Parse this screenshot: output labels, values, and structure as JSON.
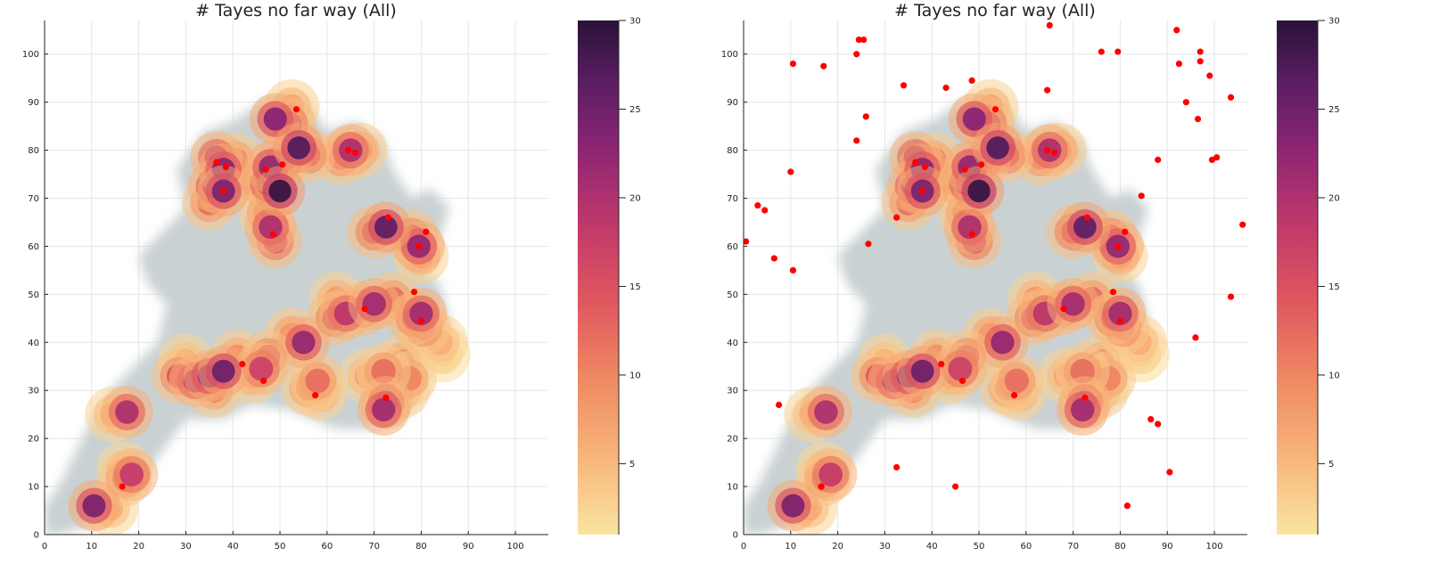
{
  "chart_data": [
    {
      "type": "scatter",
      "title": "# Tayes no far way (All)",
      "xlabel": "",
      "ylabel": "",
      "xlim": [
        0,
        107
      ],
      "ylim": [
        0,
        107
      ],
      "x_ticks": [
        "0",
        "10",
        "20",
        "30",
        "40",
        "50",
        "60",
        "70",
        "80",
        "90",
        "100"
      ],
      "y_ticks": [
        "0",
        "10",
        "20",
        "30",
        "40",
        "50",
        "60",
        "70",
        "80",
        "90",
        "100"
      ],
      "grid": true,
      "colorbar": {
        "min": 1,
        "max": 30,
        "ticks": [
          "5",
          "10",
          "15",
          "20",
          "25",
          "30"
        ]
      },
      "background_color": "#c6cfd0",
      "series": [
        {
          "marker": "heat-bubble",
          "points": [
            {
              "x": 10.5,
              "y": 6,
              "v": 24
            },
            {
              "x": 14,
              "y": 5.5,
              "v": 6
            },
            {
              "x": 17,
              "y": 11.5,
              "v": 12
            },
            {
              "x": 18.5,
              "y": 12.5,
              "v": 18
            },
            {
              "x": 17,
              "y": 13.5,
              "v": 5
            },
            {
              "x": 17.5,
              "y": 25.5,
              "v": 20
            },
            {
              "x": 14.5,
              "y": 25,
              "v": 6
            },
            {
              "x": 28.5,
              "y": 33,
              "v": 14
            },
            {
              "x": 32,
              "y": 32,
              "v": 19
            },
            {
              "x": 35,
              "y": 33,
              "v": 23
            },
            {
              "x": 38,
              "y": 34,
              "v": 25
            },
            {
              "x": 30,
              "y": 36,
              "v": 6
            },
            {
              "x": 41,
              "y": 37,
              "v": 9
            },
            {
              "x": 36,
              "y": 30,
              "v": 10
            },
            {
              "x": 46,
              "y": 34.5,
              "v": 17
            },
            {
              "x": 47.5,
              "y": 37,
              "v": 14
            },
            {
              "x": 44,
              "y": 33,
              "v": 8
            },
            {
              "x": 55,
              "y": 40,
              "v": 22
            },
            {
              "x": 52.5,
              "y": 41.5,
              "v": 10
            },
            {
              "x": 58,
              "y": 32,
              "v": 12
            },
            {
              "x": 56,
              "y": 30.5,
              "v": 10
            },
            {
              "x": 58.5,
              "y": 29.5,
              "v": 8
            },
            {
              "x": 61.5,
              "y": 45,
              "v": 15
            },
            {
              "x": 64,
              "y": 46,
              "v": 19
            },
            {
              "x": 67.5,
              "y": 47,
              "v": 15
            },
            {
              "x": 70,
              "y": 48,
              "v": 21
            },
            {
              "x": 74,
              "y": 49,
              "v": 12
            },
            {
              "x": 62,
              "y": 49,
              "v": 8
            },
            {
              "x": 72,
              "y": 34,
              "v": 12
            },
            {
              "x": 72.5,
              "y": 27.5,
              "v": 19
            },
            {
              "x": 72,
              "y": 26,
              "v": 21
            },
            {
              "x": 76,
              "y": 36,
              "v": 9
            },
            {
              "x": 77.5,
              "y": 32.5,
              "v": 10
            },
            {
              "x": 76,
              "y": 30,
              "v": 8
            },
            {
              "x": 68.5,
              "y": 33,
              "v": 7
            },
            {
              "x": 78.5,
              "y": 45,
              "v": 16
            },
            {
              "x": 80,
              "y": 46,
              "v": 21
            },
            {
              "x": 80.5,
              "y": 43,
              "v": 13
            },
            {
              "x": 84.5,
              "y": 37.5,
              "v": 4
            },
            {
              "x": 84,
              "y": 40,
              "v": 6
            },
            {
              "x": 72.5,
              "y": 64,
              "v": 26
            },
            {
              "x": 70,
              "y": 63,
              "v": 15
            },
            {
              "x": 79.5,
              "y": 60,
              "v": 22
            },
            {
              "x": 78,
              "y": 62,
              "v": 14
            },
            {
              "x": 80,
              "y": 58,
              "v": 8
            },
            {
              "x": 48,
              "y": 64,
              "v": 20
            },
            {
              "x": 49,
              "y": 61,
              "v": 16
            },
            {
              "x": 47,
              "y": 67,
              "v": 10
            },
            {
              "x": 50,
              "y": 71.5,
              "v": 29
            },
            {
              "x": 47.5,
              "y": 73,
              "v": 20
            },
            {
              "x": 48,
              "y": 76.5,
              "v": 22
            },
            {
              "x": 51,
              "y": 78,
              "v": 15
            },
            {
              "x": 44.5,
              "y": 73,
              "v": 8
            },
            {
              "x": 38,
              "y": 71.5,
              "v": 24
            },
            {
              "x": 36,
              "y": 72.5,
              "v": 20
            },
            {
              "x": 38,
              "y": 76,
              "v": 23
            },
            {
              "x": 36.5,
              "y": 78.5,
              "v": 19
            },
            {
              "x": 35,
              "y": 69,
              "v": 12
            },
            {
              "x": 40.5,
              "y": 78,
              "v": 10
            },
            {
              "x": 49,
              "y": 86.5,
              "v": 23
            },
            {
              "x": 52,
              "y": 85.5,
              "v": 16
            },
            {
              "x": 52.5,
              "y": 89,
              "v": 7
            },
            {
              "x": 54,
              "y": 80.5,
              "v": 27
            },
            {
              "x": 56,
              "y": 79,
              "v": 14
            },
            {
              "x": 65,
              "y": 80,
              "v": 20
            },
            {
              "x": 63,
              "y": 78.5,
              "v": 12
            },
            {
              "x": 67,
              "y": 80,
              "v": 9
            }
          ]
        },
        {
          "marker": "red-dot",
          "points": [
            {
              "x": 16.5,
              "y": 10
            },
            {
              "x": 42,
              "y": 35.5
            },
            {
              "x": 46.5,
              "y": 32
            },
            {
              "x": 57.5,
              "y": 29
            },
            {
              "x": 72.5,
              "y": 28.5
            },
            {
              "x": 68,
              "y": 47
            },
            {
              "x": 78.5,
              "y": 50.5
            },
            {
              "x": 80,
              "y": 44.5
            },
            {
              "x": 73,
              "y": 66
            },
            {
              "x": 79.5,
              "y": 60
            },
            {
              "x": 81,
              "y": 63
            },
            {
              "x": 48.5,
              "y": 62.5
            },
            {
              "x": 47,
              "y": 76
            },
            {
              "x": 50.5,
              "y": 77
            },
            {
              "x": 38,
              "y": 71.5
            },
            {
              "x": 38.5,
              "y": 76.5
            },
            {
              "x": 36.5,
              "y": 77.5
            },
            {
              "x": 53.5,
              "y": 88.5
            },
            {
              "x": 64.5,
              "y": 80
            },
            {
              "x": 66,
              "y": 79.5
            }
          ]
        }
      ]
    },
    {
      "type": "scatter",
      "title": "# Tayes no far way (All)",
      "xlabel": "",
      "ylabel": "",
      "xlim": [
        0,
        107
      ],
      "ylim": [
        0,
        107
      ],
      "x_ticks": [
        "0",
        "10",
        "20",
        "30",
        "40",
        "50",
        "60",
        "70",
        "80",
        "90",
        "100"
      ],
      "y_ticks": [
        "0",
        "10",
        "20",
        "30",
        "40",
        "50",
        "60",
        "70",
        "80",
        "90",
        "100"
      ],
      "grid": true,
      "colorbar": {
        "min": 1,
        "max": 30,
        "ticks": [
          "5",
          "10",
          "15",
          "20",
          "25",
          "30"
        ]
      },
      "background_color": "#c6cfd0",
      "series": [
        {
          "marker": "heat-bubble",
          "same_as_chart": 0
        },
        {
          "marker": "red-dot",
          "points": [
            {
              "x": 16.5,
              "y": 10
            },
            {
              "x": 42,
              "y": 35.5
            },
            {
              "x": 46.5,
              "y": 32
            },
            {
              "x": 57.5,
              "y": 29
            },
            {
              "x": 72.5,
              "y": 28.5
            },
            {
              "x": 68,
              "y": 47
            },
            {
              "x": 78.5,
              "y": 50.5
            },
            {
              "x": 80,
              "y": 44.5
            },
            {
              "x": 73,
              "y": 66
            },
            {
              "x": 79.5,
              "y": 60
            },
            {
              "x": 81,
              "y": 63
            },
            {
              "x": 48.5,
              "y": 62.5
            },
            {
              "x": 47,
              "y": 76
            },
            {
              "x": 50.5,
              "y": 77
            },
            {
              "x": 38,
              "y": 71.5
            },
            {
              "x": 38.5,
              "y": 76.5
            },
            {
              "x": 36.5,
              "y": 77.5
            },
            {
              "x": 53.5,
              "y": 88.5
            },
            {
              "x": 64.5,
              "y": 80
            },
            {
              "x": 66,
              "y": 79.5
            },
            {
              "x": 0.5,
              "y": 61
            },
            {
              "x": 3,
              "y": 68.5
            },
            {
              "x": 4.5,
              "y": 67.5
            },
            {
              "x": 6.5,
              "y": 57.5
            },
            {
              "x": 7.5,
              "y": 27
            },
            {
              "x": 10,
              "y": 75.5
            },
            {
              "x": 10.5,
              "y": 55
            },
            {
              "x": 10.5,
              "y": 98
            },
            {
              "x": 17,
              "y": 97.5
            },
            {
              "x": 16.5,
              "y": 10
            },
            {
              "x": 24,
              "y": 100
            },
            {
              "x": 24.5,
              "y": 103
            },
            {
              "x": 25.5,
              "y": 103
            },
            {
              "x": 24,
              "y": 82
            },
            {
              "x": 26,
              "y": 87
            },
            {
              "x": 26.5,
              "y": 60.5
            },
            {
              "x": 32.5,
              "y": 66
            },
            {
              "x": 34,
              "y": 93.5
            },
            {
              "x": 32.5,
              "y": 14
            },
            {
              "x": 43,
              "y": 93
            },
            {
              "x": 45,
              "y": 10
            },
            {
              "x": 48.5,
              "y": 94.5
            },
            {
              "x": 65,
              "y": 106
            },
            {
              "x": 64.5,
              "y": 92.5
            },
            {
              "x": 76,
              "y": 100.5
            },
            {
              "x": 79.5,
              "y": 100.5
            },
            {
              "x": 81.5,
              "y": 6
            },
            {
              "x": 84.5,
              "y": 70.5
            },
            {
              "x": 86.5,
              "y": 24
            },
            {
              "x": 88,
              "y": 78
            },
            {
              "x": 88,
              "y": 23
            },
            {
              "x": 90.5,
              "y": 13
            },
            {
              "x": 92,
              "y": 105
            },
            {
              "x": 92.5,
              "y": 98
            },
            {
              "x": 94,
              "y": 90
            },
            {
              "x": 96,
              "y": 41
            },
            {
              "x": 96.5,
              "y": 86.5
            },
            {
              "x": 97,
              "y": 100.5
            },
            {
              "x": 97,
              "y": 98.5
            },
            {
              "x": 99,
              "y": 95.5
            },
            {
              "x": 99.5,
              "y": 78
            },
            {
              "x": 100.5,
              "y": 78.5
            },
            {
              "x": 103.5,
              "y": 91
            },
            {
              "x": 103.5,
              "y": 49.5
            },
            {
              "x": 106,
              "y": 64.5
            }
          ]
        }
      ]
    }
  ]
}
